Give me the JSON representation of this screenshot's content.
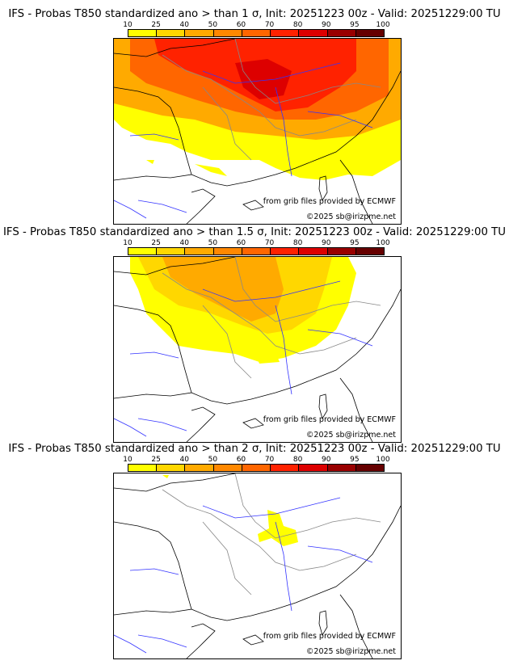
{
  "colorbar": {
    "ticks": [
      "10",
      "25",
      "40",
      "50",
      "60",
      "70",
      "80",
      "90",
      "95",
      "100"
    ],
    "colors": [
      "#ffff00",
      "#ffd700",
      "#ffaa00",
      "#ff8800",
      "#ff6600",
      "#ff2200",
      "#dd0000",
      "#990000",
      "#660000"
    ]
  },
  "panels": [
    {
      "title": "IFS - Probas T850  standardized ano > than 1 σ, Init: 20251223 00z - Valid: 20251229:00 TU",
      "credit_source": "from grib files provided by ECMWF",
      "credit_copyright": "©2025 sb@irizpme.net"
    },
    {
      "title": "IFS - Probas T850  standardized ano > than 1.5 σ, Init: 20251223 00z - Valid: 20251229:00 TU",
      "credit_source": "from grib files provided by ECMWF",
      "credit_copyright": "©2025 sb@irizpme.net"
    },
    {
      "title": "IFS - Probas T850  standardized ano > than 2 σ, Init: 20251223 00z - Valid: 20251229:00 TU",
      "credit_source": "from grib files provided by ECMWF",
      "credit_copyright": "©2025 sb@irizpme.net"
    }
  ]
}
